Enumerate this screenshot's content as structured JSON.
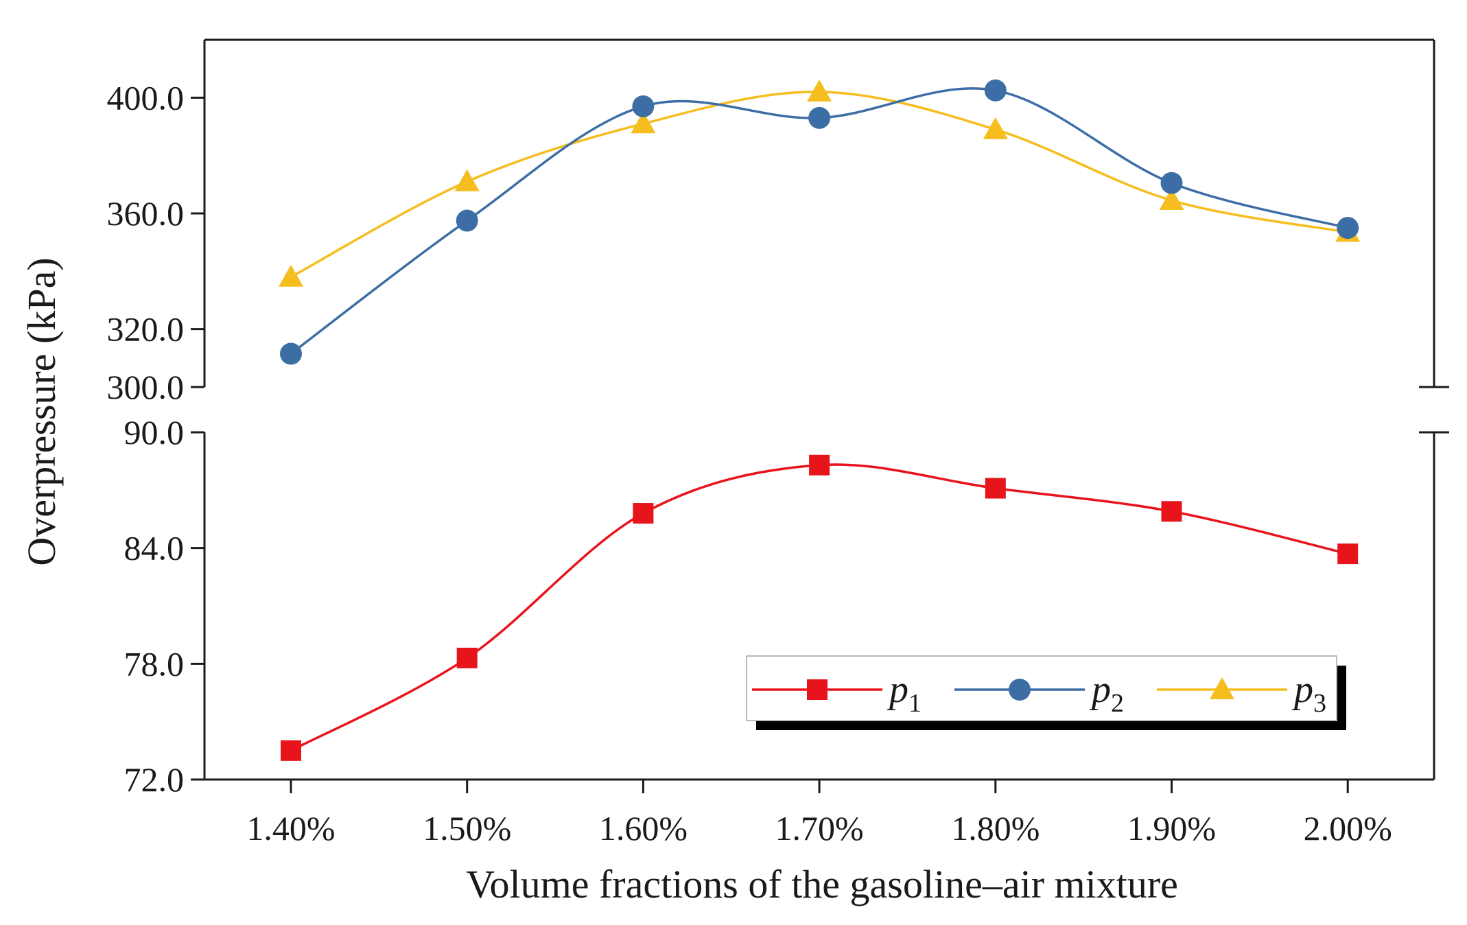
{
  "chart_data": {
    "type": "line",
    "title": "",
    "xlabel": "Volume fractions of the gasoline–air mixture",
    "ylabel": "Overpressure (kPa)",
    "categories": [
      "1.40%",
      "1.50%",
      "1.60%",
      "1.70%",
      "1.80%",
      "1.90%",
      "2.00%"
    ],
    "x": [
      1.4,
      1.5,
      1.6,
      1.7,
      1.8,
      1.9,
      2.0
    ],
    "y_axis_broken": true,
    "ylim_upper": [
      300,
      420
    ],
    "ylim_lower": [
      72,
      90
    ],
    "yticks_upper": [
      "300.0",
      "320.0",
      "360.0",
      "400.0"
    ],
    "yticks_lower": [
      "72.0",
      "78.0",
      "84.0",
      "90.0"
    ],
    "legend_position": "lower-right",
    "series": [
      {
        "name": "p",
        "subscript": "1",
        "panel": "lower",
        "marker": "square",
        "color": "#e8141c",
        "values": [
          73.5,
          78.3,
          85.8,
          88.3,
          87.1,
          85.9,
          83.7
        ]
      },
      {
        "name": "p",
        "subscript": "2",
        "panel": "upper",
        "marker": "circle",
        "color": "#3c6ea5",
        "values": [
          311.5,
          357.5,
          397.0,
          393.0,
          402.5,
          370.5,
          355.0
        ]
      },
      {
        "name": "p",
        "subscript": "3",
        "panel": "upper",
        "marker": "triangle",
        "color": "#f5bd1e",
        "values": [
          338.0,
          371.0,
          391.0,
          402.0,
          389.0,
          364.5,
          353.5
        ]
      }
    ]
  }
}
